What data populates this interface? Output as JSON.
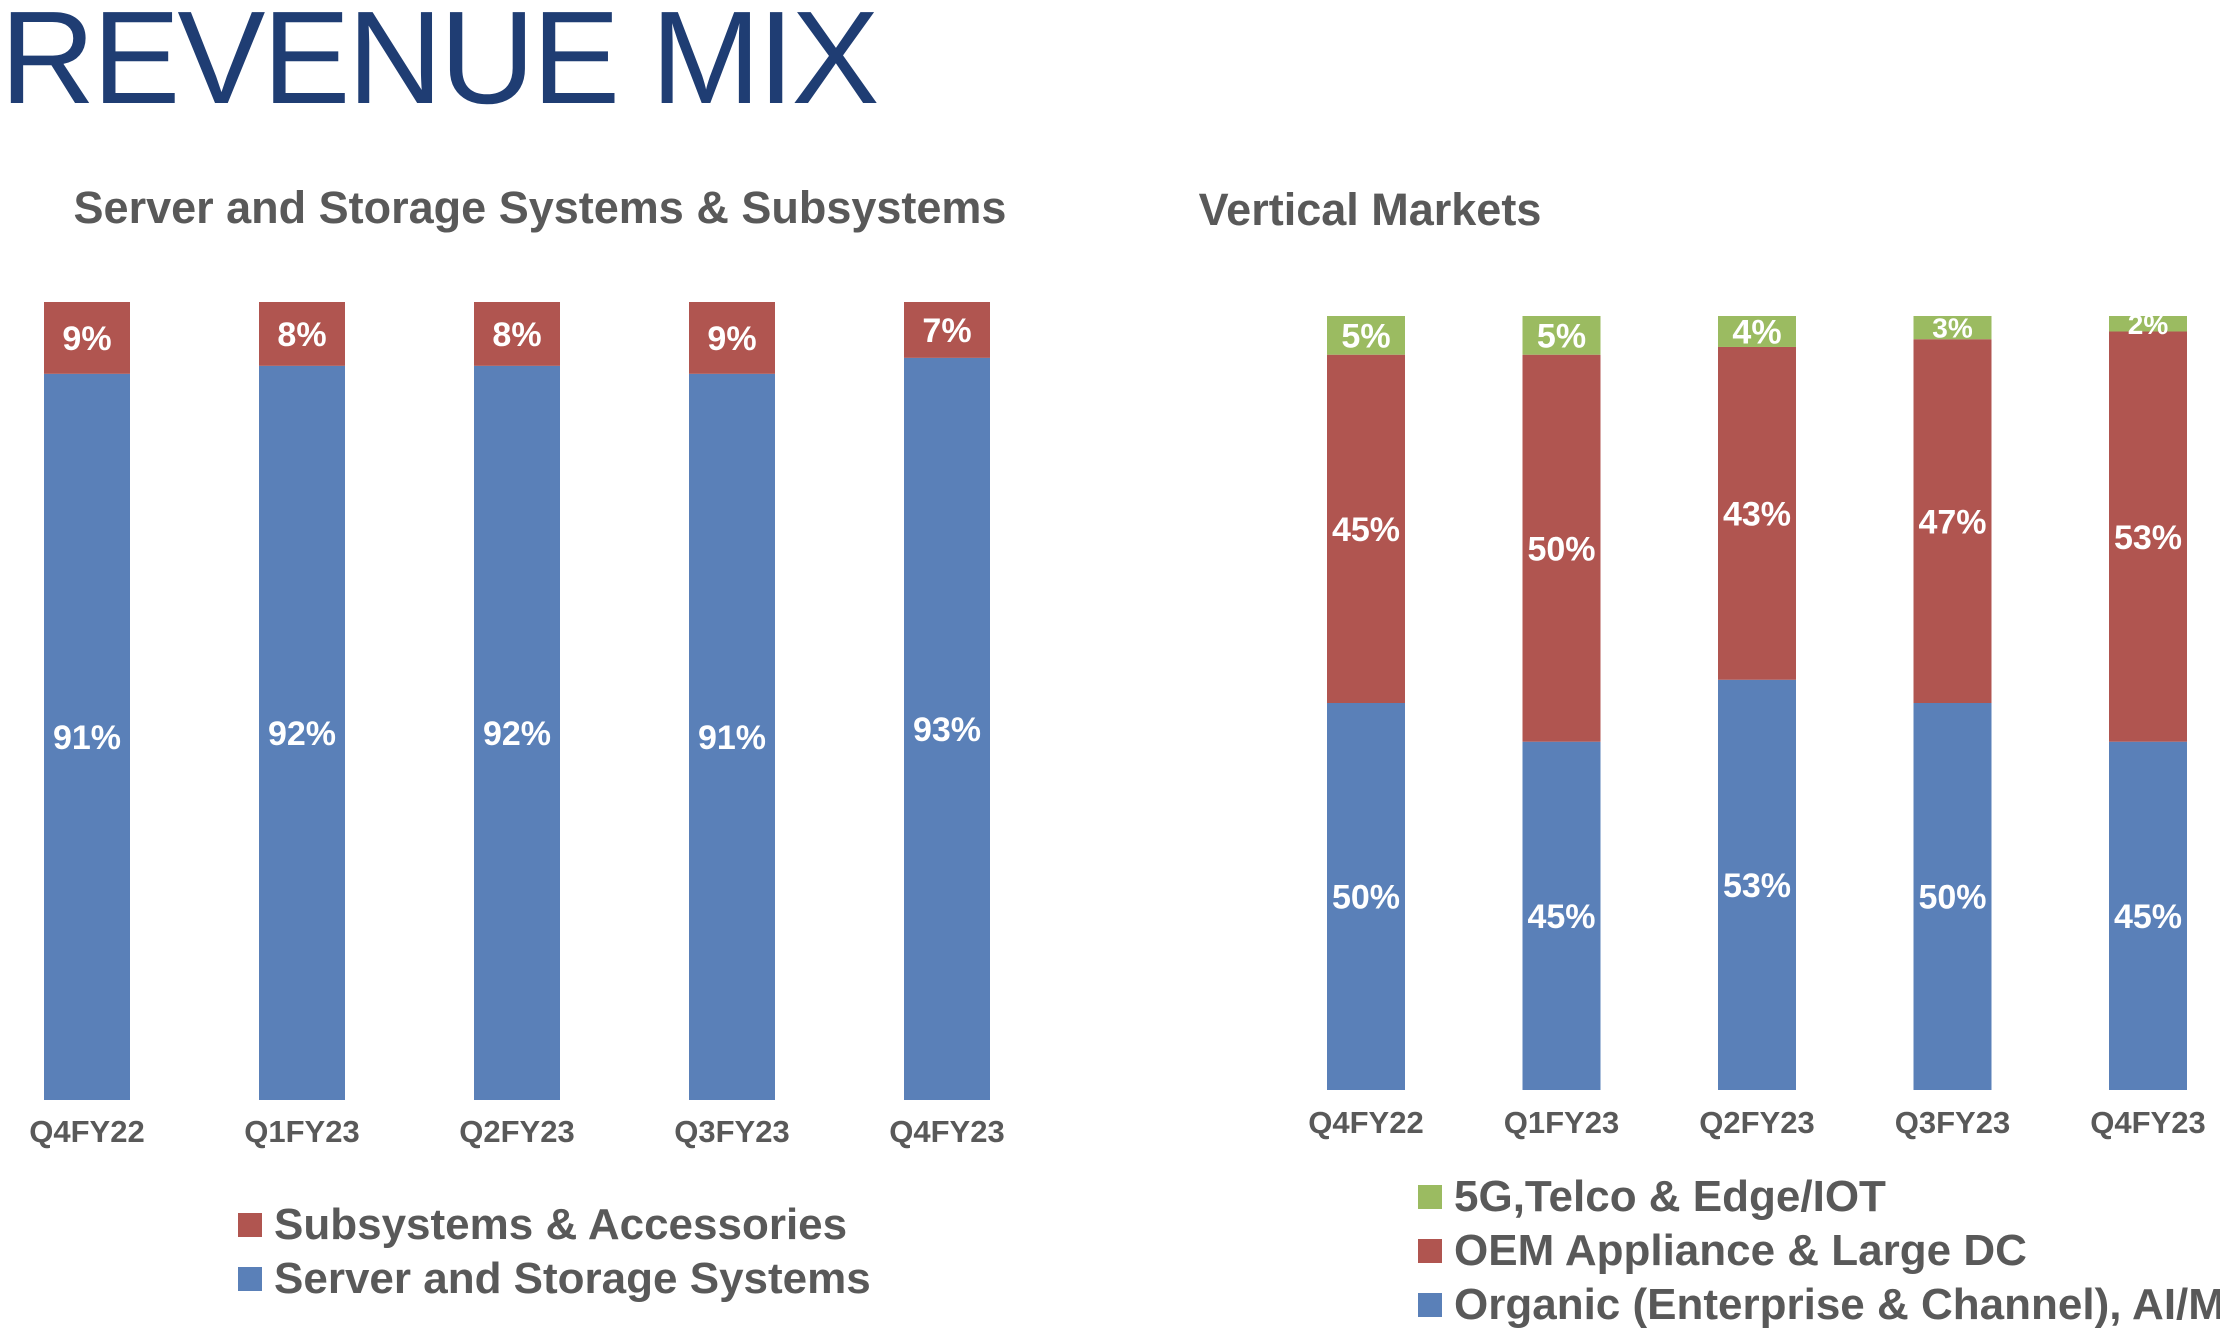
{
  "page": {
    "title": "REVENUE MIX"
  },
  "colors": {
    "blue": "#5a80b8",
    "red": "#b05550",
    "green": "#9bbb61",
    "title": "#1f3d73",
    "text": "#595959"
  },
  "chart_data": [
    {
      "type": "bar",
      "stacked": true,
      "title": "Server and Storage Systems & Subsystems",
      "categories": [
        "Q4FY22",
        "Q1FY23",
        "Q2FY23",
        "Q3FY23",
        "Q4FY23"
      ],
      "series": [
        {
          "name": "Server and Storage Systems",
          "values": [
            91,
            92,
            92,
            91,
            93
          ],
          "labels": [
            "91%",
            "92%",
            "92%",
            "91%",
            "93%"
          ],
          "color": "#5a80b8"
        },
        {
          "name": "Subsystems & Accessories",
          "values": [
            9,
            8,
            8,
            9,
            7
          ],
          "labels": [
            "9%",
            "8%",
            "8%",
            "9%",
            "7%"
          ],
          "color": "#b05550"
        }
      ],
      "ylim": [
        0,
        100
      ],
      "grid": false,
      "legend_position": "bottom",
      "legend": [
        "Subsystems & Accessories",
        "Server and Storage Systems"
      ]
    },
    {
      "type": "bar",
      "stacked": true,
      "title": "Vertical Markets",
      "categories": [
        "Q4FY22",
        "Q1FY23",
        "Q2FY23",
        "Q3FY23",
        "Q4FY23"
      ],
      "series": [
        {
          "name": "Organic (Enterprise & Channel), AI/ML",
          "values": [
            50,
            45,
            53,
            50,
            45
          ],
          "labels": [
            "50%",
            "45%",
            "53%",
            "50%",
            "45%"
          ],
          "color": "#5a80b8"
        },
        {
          "name": "OEM Appliance & Large DC",
          "values": [
            45,
            50,
            43,
            47,
            53
          ],
          "labels": [
            "45%",
            "50%",
            "43%",
            "47%",
            "53%"
          ],
          "color": "#b05550"
        },
        {
          "name": "5G,Telco & Edge/IOT",
          "values": [
            5,
            5,
            4,
            3,
            2
          ],
          "labels": [
            "5%",
            "5%",
            "4%",
            "3%",
            "2%"
          ],
          "color": "#9bbb61"
        }
      ],
      "ylim": [
        0,
        100
      ],
      "grid": false,
      "legend_position": "bottom",
      "legend": [
        "5G,Telco & Edge/IOT",
        "OEM Appliance & Large DC",
        "Organic (Enterprise & Channel), AI/ML"
      ]
    }
  ]
}
